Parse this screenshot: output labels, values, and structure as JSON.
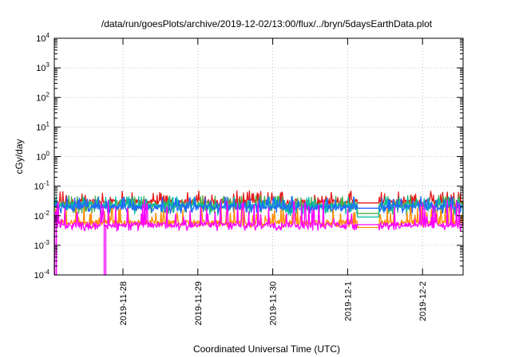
{
  "chart_data": {
    "type": "line",
    "title": "/data/run/goesPlots/archive/2019-12-02/13:00/flux/../bryn/5daysEarthData.plot",
    "xlabel": "Coordinated Universal Time (UTC)",
    "ylabel": "cGy/day",
    "x_range": [
      "2019-11-27T02:00",
      "2019-12-02T13:00"
    ],
    "x_ticks": [
      "2019-11-28",
      "2019-11-29",
      "2019-11-30",
      "2019-12-1",
      "2019-12-2"
    ],
    "y_scale": "log",
    "ylim": [
      0.0001,
      10000
    ],
    "y_ticks": [
      {
        "base": "10",
        "exp": "-4",
        "value": 0.0001
      },
      {
        "base": "10",
        "exp": "-3",
        "value": 0.001
      },
      {
        "base": "10",
        "exp": "-2",
        "value": 0.01
      },
      {
        "base": "10",
        "exp": "-1",
        "value": 0.1
      },
      {
        "base": "10",
        "exp": "0",
        "value": 1
      },
      {
        "base": "10",
        "exp": "1",
        "value": 10
      },
      {
        "base": "10",
        "exp": "2",
        "value": 100
      },
      {
        "base": "10",
        "exp": "3",
        "value": 1000
      },
      {
        "base": "10",
        "exp": "4",
        "value": 10000
      }
    ],
    "grid": true,
    "data_gap": [
      "2019-12-01T03:00",
      "2019-12-01T10:00"
    ],
    "dropouts": [
      {
        "x": "2019-11-27T02:10",
        "to": 0.0001
      },
      {
        "x": "2019-11-27T18:00",
        "to": 0.0001
      }
    ],
    "series": [
      {
        "color": "#e41a1c",
        "base": 0.03,
        "spike_max": 0.07,
        "dip_min": 0.018,
        "end": 0.027
      },
      {
        "color": "#4daf4a",
        "base": 0.024,
        "spike_max": 0.05,
        "dip_min": 0.012,
        "end": 0.012
      },
      {
        "color": "#00bfa5",
        "base": 0.022,
        "spike_max": 0.045,
        "dip_min": 0.01,
        "end": 0.009
      },
      {
        "color": "#2166ff",
        "base": 0.02,
        "spike_max": 0.045,
        "dip_min": 0.012,
        "end": 0.018
      },
      {
        "color": "#ff8c00",
        "base": 0.006,
        "spike_max": 0.02,
        "dip_min": 0.004,
        "end": 0.004
      },
      {
        "color": "#ff00ff",
        "base": 0.005,
        "spike_max": 0.035,
        "dip_min": 0.003,
        "end": 0.005
      }
    ]
  }
}
